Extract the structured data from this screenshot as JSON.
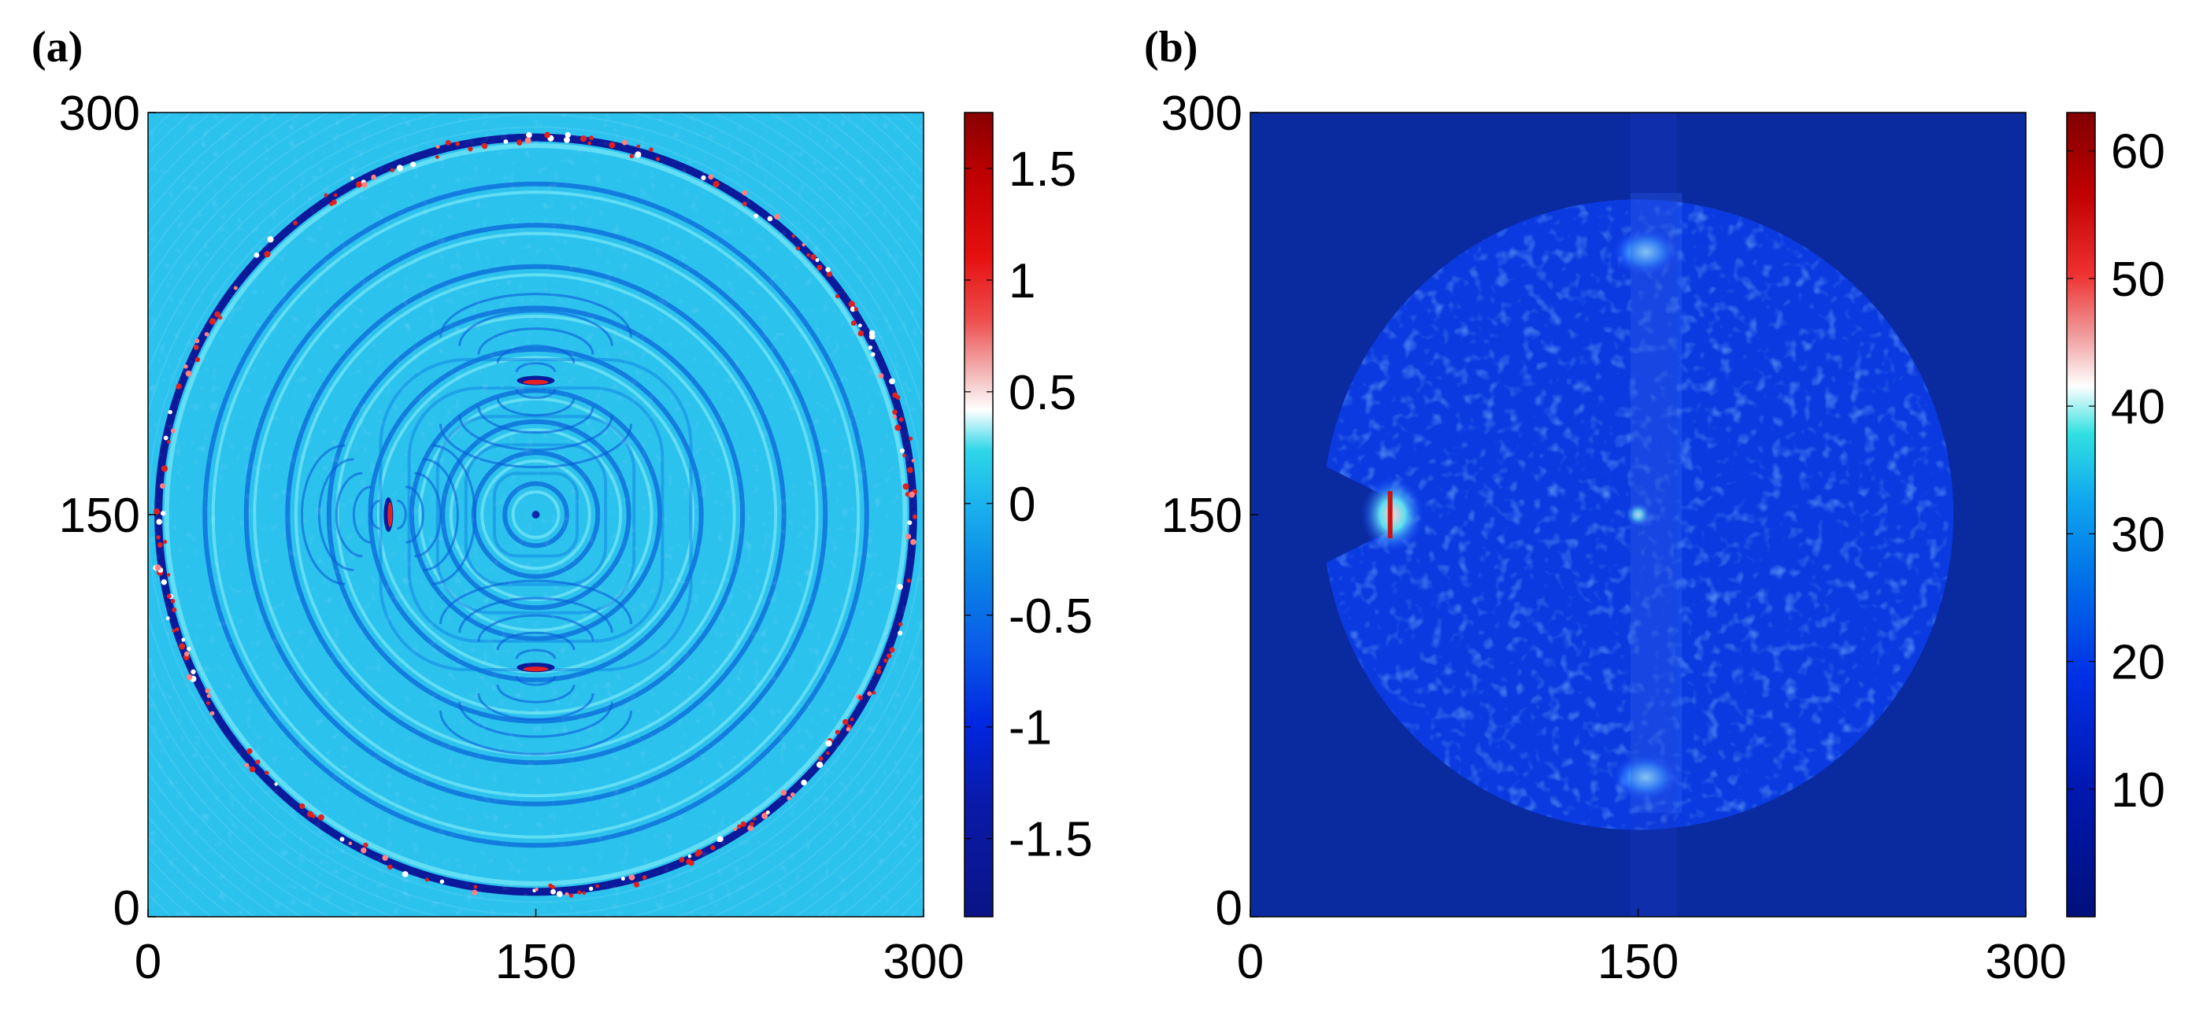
{
  "chart_data": [
    {
      "type": "heatmap",
      "panel_label": "(a)",
      "description_kind": "wavefield",
      "xlim": [
        0,
        300
      ],
      "ylim": [
        0,
        300
      ],
      "x_ticks": [
        "0",
        "150",
        "300"
      ],
      "y_ticks": [
        "0",
        "150",
        "300"
      ],
      "colorbar": {
        "range": [
          -1.85,
          1.75
        ],
        "ticks": [
          -1.5,
          -1,
          -0.5,
          0,
          0.5,
          1,
          1.5
        ],
        "tick_labels": [
          "-1.5",
          "-1",
          "-0.5",
          "0",
          "0.5",
          "1",
          "1.5"
        ]
      },
      "features": {
        "outer_ring_radius": 146,
        "ring_radii": [
          146,
          128,
          112,
          96,
          80,
          64,
          48,
          36,
          24,
          12
        ],
        "scatterers": [
          {
            "x": 93,
            "y": 150,
            "shape": "vertical"
          },
          {
            "x": 150,
            "y": 200,
            "shape": "horizontal"
          },
          {
            "x": 150,
            "y": 93,
            "shape": "horizontal"
          }
        ],
        "background_value": 0.15
      },
      "colors": {
        "low": "#0a1a8c",
        "mid": "#1ea8f0",
        "high": "#a00000"
      }
    },
    {
      "type": "heatmap",
      "panel_label": "(b)",
      "description_kind": "amplitude",
      "xlim": [
        0,
        300
      ],
      "ylim": [
        0,
        300
      ],
      "x_ticks": [
        "0",
        "150",
        "300"
      ],
      "y_ticks": [
        "0",
        "150",
        "300"
      ],
      "colorbar": {
        "range": [
          0,
          63
        ],
        "ticks": [
          10,
          20,
          30,
          40,
          50,
          60
        ],
        "tick_labels": [
          "10",
          "20",
          "30",
          "40",
          "50",
          "60"
        ]
      },
      "features": {
        "disk_center": [
          150,
          150
        ],
        "disk_radius": 122,
        "disk_value": 18,
        "background_value": 7,
        "notch": {
          "x": 55,
          "y": 150,
          "width": 20,
          "height": 40
        },
        "hot_spots": [
          {
            "x": 150,
            "y": 150,
            "value": 50
          },
          {
            "x": 55,
            "y": 150,
            "value": 58
          },
          {
            "x": 153,
            "y": 248,
            "value": 30
          },
          {
            "x": 153,
            "y": 52,
            "value": 30
          }
        ]
      },
      "colors": {
        "low": "#00007f",
        "mid": "#00c8e0",
        "high": "#800000"
      }
    }
  ]
}
